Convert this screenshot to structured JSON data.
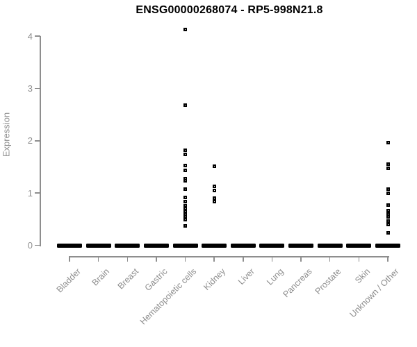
{
  "chart_data": {
    "type": "scatter",
    "title": "ENSG00000268074 - RP5-998N21.8",
    "ylabel": "Expression",
    "xlabel": "",
    "ylim": [
      0,
      4.3
    ],
    "yticks": [
      0,
      1,
      2,
      3,
      4
    ],
    "grid": false,
    "legend": "none",
    "marker": "small-black-square",
    "colors": {
      "points": "#000000",
      "axis": "#8e8e8e",
      "labels": "#8e8e8e",
      "title": "#000000",
      "background": "#ffffff"
    },
    "categories": [
      "Bladder",
      "Brain",
      "Breast",
      "Gastric",
      "Hematopoietic cells",
      "Kidney",
      "Liver",
      "Lung",
      "Pancreas",
      "Prostate",
      "Skin",
      "Unknown / Other"
    ],
    "series": [
      {
        "name": "Bladder",
        "zero_cluster": true,
        "values": []
      },
      {
        "name": "Brain",
        "zero_cluster": true,
        "values": []
      },
      {
        "name": "Breast",
        "zero_cluster": true,
        "values": []
      },
      {
        "name": "Gastric",
        "zero_cluster": true,
        "values": []
      },
      {
        "name": "Hematopoietic cells",
        "zero_cluster": true,
        "values": [
          4.12,
          2.68,
          1.82,
          1.74,
          1.52,
          1.43,
          1.28,
          1.23,
          1.08,
          0.91,
          0.84,
          0.75,
          0.7,
          0.65,
          0.6,
          0.55,
          0.49,
          0.37
        ]
      },
      {
        "name": "Kidney",
        "zero_cluster": true,
        "values": [
          1.51,
          1.13,
          1.05,
          0.9,
          0.84
        ]
      },
      {
        "name": "Liver",
        "zero_cluster": true,
        "values": []
      },
      {
        "name": "Lung",
        "zero_cluster": true,
        "values": []
      },
      {
        "name": "Pancreas",
        "zero_cluster": true,
        "values": []
      },
      {
        "name": "Prostate",
        "zero_cluster": true,
        "values": []
      },
      {
        "name": "Skin",
        "zero_cluster": true,
        "values": []
      },
      {
        "name": "Unknown / Other",
        "zero_cluster": true,
        "values": [
          1.97,
          1.55,
          1.47,
          1.07,
          0.99,
          0.77,
          0.66,
          0.6,
          0.55,
          0.47,
          0.4,
          0.24
        ]
      }
    ],
    "zero_cluster_note": "every category shows a dense overplotted cluster of points at expression ~0"
  }
}
